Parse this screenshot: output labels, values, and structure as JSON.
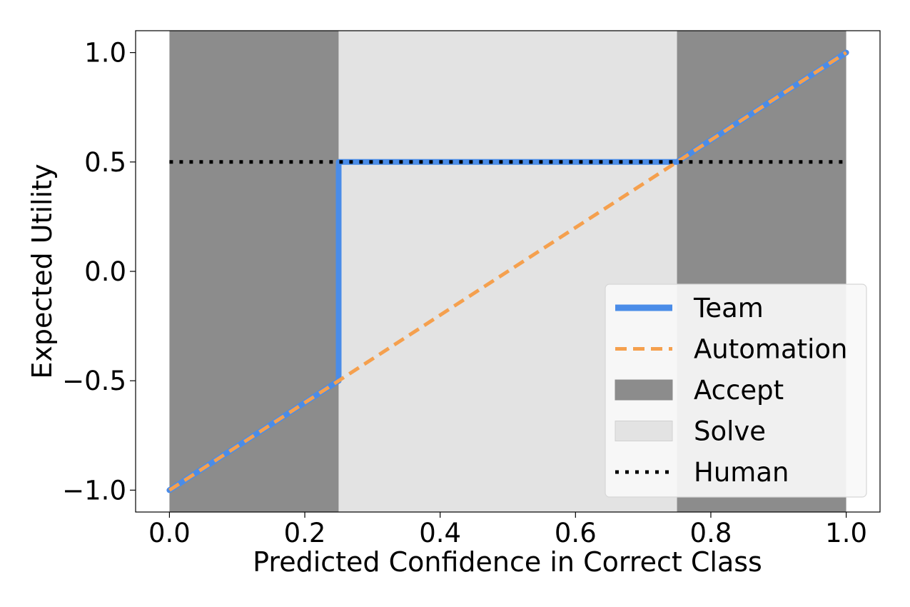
{
  "chart_data": {
    "type": "line",
    "xlabel": "Predicted Confidence in Correct Class",
    "ylabel": "Expected Utility",
    "xlim": [
      -0.05,
      1.05
    ],
    "ylim": [
      -1.1,
      1.1
    ],
    "xticks": [
      0.0,
      0.2,
      0.4,
      0.6,
      0.8,
      1.0
    ],
    "xtick_labels": [
      "0.0",
      "0.2",
      "0.4",
      "0.6",
      "0.8",
      "1.0"
    ],
    "yticks": [
      -1.0,
      -0.5,
      0.0,
      0.5,
      1.0
    ],
    "ytick_labels": [
      "−1.0",
      "−0.5",
      "0.0",
      "0.5",
      "1.0"
    ],
    "grid": false,
    "legend_position": "lower-right",
    "regions": [
      {
        "name": "Accept",
        "x_start": 0.0,
        "x_end": 0.25,
        "color": "#8c8c8c"
      },
      {
        "name": "Solve",
        "x_start": 0.25,
        "x_end": 0.75,
        "color": "#e3e3e3"
      },
      {
        "name": "Accept",
        "x_start": 0.75,
        "x_end": 1.0,
        "color": "#8c8c8c"
      }
    ],
    "series": [
      {
        "name": "Team",
        "style": "solid",
        "color": "#4a8ce8",
        "x": [
          0.0,
          0.25,
          0.25,
          0.75,
          1.0
        ],
        "y": [
          -1.0,
          -0.5,
          0.5,
          0.5,
          1.0
        ]
      },
      {
        "name": "Automation",
        "style": "dashed",
        "color": "#f5a04e",
        "x": [
          0.0,
          1.0
        ],
        "y": [
          -1.0,
          1.0
        ]
      },
      {
        "name": "Human",
        "style": "dotted",
        "color": "#000000",
        "x": [
          0.0,
          1.0
        ],
        "y": [
          0.5,
          0.5
        ]
      }
    ],
    "legend": [
      {
        "label": "Team",
        "kind": "line",
        "style": "solid",
        "color": "#4a8ce8"
      },
      {
        "label": "Automation",
        "kind": "line",
        "style": "dashed",
        "color": "#f5a04e"
      },
      {
        "label": "Accept",
        "kind": "patch",
        "color": "#8c8c8c"
      },
      {
        "label": "Solve",
        "kind": "patch",
        "color": "#e3e3e3"
      },
      {
        "label": "Human",
        "kind": "line",
        "style": "dotted",
        "color": "#000000"
      }
    ]
  }
}
